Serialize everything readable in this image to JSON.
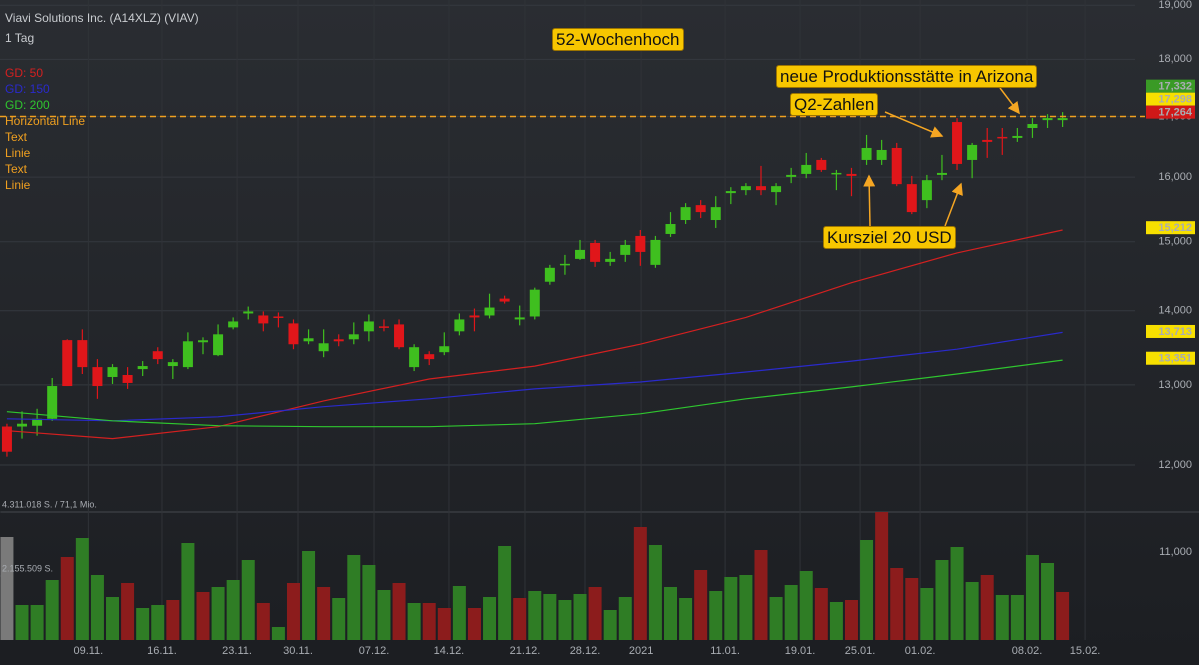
{
  "header": {
    "title": "Viavi Solutions Inc. (A14XLZ) (VIAV)",
    "interval": "1 Tag"
  },
  "chart_data": {
    "type": "candlestick",
    "log_scale": true,
    "grid": true,
    "ylim": [
      11000,
      19100
    ],
    "yticks": [
      {
        "value": 11000,
        "label": "11,000"
      },
      {
        "value": 12000,
        "label": "12,000"
      },
      {
        "value": 13000,
        "label": "13,000"
      },
      {
        "value": 14000,
        "label": "14,000"
      },
      {
        "value": 15000,
        "label": "15,000"
      },
      {
        "value": 16000,
        "label": "16,000"
      },
      {
        "value": 17000,
        "label": "17,000"
      },
      {
        "value": 18000,
        "label": "18,000"
      },
      {
        "value": 19000,
        "label": "19,000"
      }
    ],
    "xlim": [
      -0.46,
      74.8
    ],
    "xticks": [
      {
        "value": 5.4,
        "label": "09.11."
      },
      {
        "value": 10.28,
        "label": "16.11."
      },
      {
        "value": 15.26,
        "label": "23.11."
      },
      {
        "value": 19.3,
        "label": "30.11."
      },
      {
        "value": 24.34,
        "label": "07.12."
      },
      {
        "value": 29.31,
        "label": "14.12."
      },
      {
        "value": 34.35,
        "label": "21.12."
      },
      {
        "value": 38.33,
        "label": "28.12."
      },
      {
        "value": 42.05,
        "label": "2021"
      },
      {
        "value": 47.62,
        "label": "11.01."
      },
      {
        "value": 52.59,
        "label": "19.01."
      },
      {
        "value": 56.57,
        "label": "25.01."
      },
      {
        "value": 60.55,
        "label": "01.02."
      },
      {
        "value": 67.64,
        "label": "08.02."
      },
      {
        "value": 71.49,
        "label": "15.02."
      }
    ],
    "up_color": "#3fbf1f",
    "down_color": "#e0161a",
    "open": [
      12470,
      12470,
      12480,
      12567,
      13595,
      13595,
      13233,
      13103,
      13129,
      13207,
      13445,
      13247,
      13233,
      13566,
      13392,
      13769,
      13962,
      13934,
      13920,
      13824,
      13579,
      13445,
      13606,
      13606,
      13715,
      13783,
      13810,
      13233,
      13405,
      13432,
      13715,
      13934,
      13934,
      14171,
      13879,
      13920,
      14412,
      14657,
      14745,
      14982,
      14701,
      14804,
      15087,
      14657,
      15117,
      15329,
      15559,
      15329,
      15747,
      15794,
      15857,
      15763,
      16004,
      16052,
      16278,
      16052,
      16052,
      16278,
      16278,
      16474,
      15889,
      15637,
      16036,
      16906,
      16278,
      16607,
      16657,
      16640,
      16806,
      16939,
      16939
    ],
    "high": [
      12505,
      12660,
      12693,
      13090,
      13606,
      13742,
      13339,
      13273,
      13233,
      13313,
      13499,
      13339,
      13701,
      13633,
      13810,
      13907,
      14059,
      13990,
      13976,
      13879,
      13742,
      13742,
      13674,
      13838,
      13948,
      13879,
      13879,
      13539,
      13445,
      13701,
      13962,
      14031,
      14241,
      14213,
      14073,
      14327,
      14657,
      14804,
      15027,
      15027,
      14848,
      15027,
      15177,
      15087,
      15451,
      15590,
      15637,
      15699,
      15841,
      15905,
      16181,
      15905,
      16149,
      16392,
      16311,
      16116,
      16149,
      16690,
      16607,
      16557,
      16020,
      16036,
      16360,
      16973,
      16557,
      16806,
      16806,
      16806,
      16973,
      17040,
      17075
    ],
    "low": [
      12100,
      12320,
      12357,
      12540,
      12985,
      13142,
      12820,
      13012,
      12948,
      13116,
      13273,
      13077,
      13207,
      13405,
      13379,
      13742,
      13879,
      13715,
      13769,
      13472,
      13539,
      13365,
      13512,
      13539,
      13579,
      13715,
      13472,
      13181,
      13260,
      13392,
      13660,
      13715,
      13893,
      14101,
      13797,
      13879,
      14369,
      14513,
      14730,
      14628,
      14643,
      14701,
      14643,
      14614,
      15072,
      15268,
      15359,
      15208,
      15575,
      15715,
      15715,
      15559,
      15905,
      15984,
      16084,
      15794,
      15699,
      16197,
      16197,
      15857,
      15420,
      15512,
      15952,
      16116,
      15984,
      16311,
      16360,
      16574,
      16640,
      16806,
      16823
    ],
    "close": [
      12160,
      12505,
      12567,
      12985,
      12985,
      13233,
      12985,
      13233,
      13025,
      13247,
      13339,
      13299,
      13579,
      13593,
      13674,
      13851,
      13990,
      13824,
      13907,
      13539,
      13620,
      13552,
      13579,
      13674,
      13851,
      13769,
      13499,
      13499,
      13339,
      13512,
      13879,
      13907,
      14045,
      14129,
      13907,
      14298,
      14614,
      14672,
      14878,
      14701,
      14745,
      14952,
      14848,
      15027,
      15268,
      15528,
      15451,
      15528,
      15779,
      15857,
      15794,
      15857,
      16036,
      16197,
      16116,
      16068,
      16020,
      16474,
      16441,
      15889,
      15451,
      15952,
      16068,
      16213,
      16524,
      16574,
      16640,
      16673,
      16873,
      16973,
      16973
    ],
    "series": [
      {
        "name": "GD: 50",
        "color": "#d42020",
        "x": [
          0,
          7,
          14,
          21,
          28,
          35,
          42,
          49,
          56,
          63,
          70
        ],
        "values": [
          12418,
          12320,
          12468,
          12794,
          13077,
          13247,
          13539,
          13907,
          14398,
          14834,
          15177
        ]
      },
      {
        "name": "GD: 150",
        "color": "#2a2acc",
        "x": [
          0,
          7,
          14,
          21,
          28,
          35,
          42,
          49,
          56,
          63,
          70
        ],
        "values": [
          12567,
          12542,
          12592,
          12719,
          12820,
          12948,
          13038,
          13168,
          13313,
          13472,
          13700
        ]
      },
      {
        "name": "GD: 200",
        "color": "#2fc62f",
        "x": [
          0,
          7,
          14,
          21,
          28,
          35,
          42,
          49,
          56,
          63,
          70
        ],
        "values": [
          12656,
          12542,
          12480,
          12468,
          12468,
          12505,
          12630,
          12820,
          12974,
          13142,
          13326
        ]
      }
    ],
    "drawings": [
      "Horizontal Line",
      "Text",
      "Linie",
      "Text",
      "Linie"
    ],
    "drawing_color": "#f0a020",
    "hline": {
      "value": 17000,
      "color": "#f0a020"
    },
    "price_labels": [
      {
        "value": 17332,
        "label": "17,332",
        "color": "#3a9a26",
        "text_color": "#ffffff"
      },
      {
        "value": 17298,
        "label": "17,298",
        "color": "#f7e000",
        "text_color": "#222222"
      },
      {
        "value": 17264,
        "label": "17,264",
        "color": "#d01818",
        "text_color": "#ffffff"
      },
      {
        "value": 15212,
        "label": "15,212",
        "color": "#f7e000",
        "text_color": "#222222"
      },
      {
        "value": 13713,
        "label": "13,713",
        "color": "#f7e000",
        "text_color": "#222222"
      },
      {
        "value": 13351,
        "label": "13,351",
        "color": "#f7e000",
        "text_color": "#222222"
      }
    ],
    "annotations": [
      "52-Wochenhoch",
      "neue Produktionsstätte in Arizona",
      "Q2-Zahlen",
      "Kursziel 20 USD"
    ],
    "volume": {
      "ylim": [
        0,
        4311018
      ],
      "yticks": [
        {
          "value": 4311018,
          "label": "4.311.018 S. / 71,1 Mio."
        },
        {
          "value": 2155509,
          "label": "2.155.509 S."
        }
      ],
      "values": [
        3469000,
        1178800,
        1178800,
        2020800,
        2795400,
        3435400,
        2189200,
        1448200,
        1919800,
        1077800,
        1178800,
        1347200,
        3267000,
        1616600,
        1785000,
        2020800,
        2694400,
        1246200,
        437800,
        1919800,
        2997500,
        1785000,
        1414600,
        2862800,
        2526000,
        1684000,
        1919800,
        1246200,
        1246200,
        1077800,
        1818700,
        1077800,
        1448200,
        3165900,
        1414600,
        1650300,
        1549300,
        1347200,
        1549300,
        1785000,
        1010400,
        1448200,
        3805800,
        3199600,
        1785000,
        1414600,
        2357600,
        1650300,
        2121800,
        2189200,
        3031200,
        1448200,
        1852400,
        2323900,
        1751400,
        1279800,
        1347200,
        3368000,
        4311018,
        2425000,
        2088200,
        1751400,
        2694400,
        3132200,
        1953400,
        2189200,
        1515600,
        1515600,
        2862800,
        2593400,
        1616600
      ],
      "colors": [
        "#7a7a7a",
        "#2f7d25",
        "#2f7d25",
        "#2f7d25",
        "#8c1c1c",
        "#2f7d25",
        "#2f7d25",
        "#2f7d25",
        "#8c1c1c",
        "#2f7d25",
        "#2f7d25",
        "#8c1c1c",
        "#2f7d25",
        "#8c1c1c",
        "#2f7d25",
        "#2f7d25",
        "#2f7d25",
        "#8c1c1c",
        "#2f7d25",
        "#8c1c1c",
        "#2f7d25",
        "#8c1c1c",
        "#2f7d25",
        "#2f7d25",
        "#2f7d25",
        "#2f7d25",
        "#8c1c1c",
        "#2f7d25",
        "#8c1c1c",
        "#8c1c1c",
        "#2f7d25",
        "#8c1c1c",
        "#2f7d25",
        "#2f7d25",
        "#8c1c1c",
        "#2f7d25",
        "#2f7d25",
        "#2f7d25",
        "#2f7d25",
        "#8c1c1c",
        "#2f7d25",
        "#2f7d25",
        "#8c1c1c",
        "#2f7d25",
        "#2f7d25",
        "#2f7d25",
        "#8c1c1c",
        "#2f7d25",
        "#2f7d25",
        "#2f7d25",
        "#8c1c1c",
        "#2f7d25",
        "#2f7d25",
        "#2f7d25",
        "#8c1c1c",
        "#2f7d25",
        "#8c1c1c",
        "#2f7d25",
        "#8c1c1c",
        "#8c1c1c",
        "#8c1c1c",
        "#2f7d25",
        "#2f7d25",
        "#2f7d25",
        "#2f7d25",
        "#8c1c1c",
        "#2f7d25",
        "#2f7d25",
        "#2f7d25",
        "#2f7d25",
        "#8c1c1c"
      ]
    }
  }
}
